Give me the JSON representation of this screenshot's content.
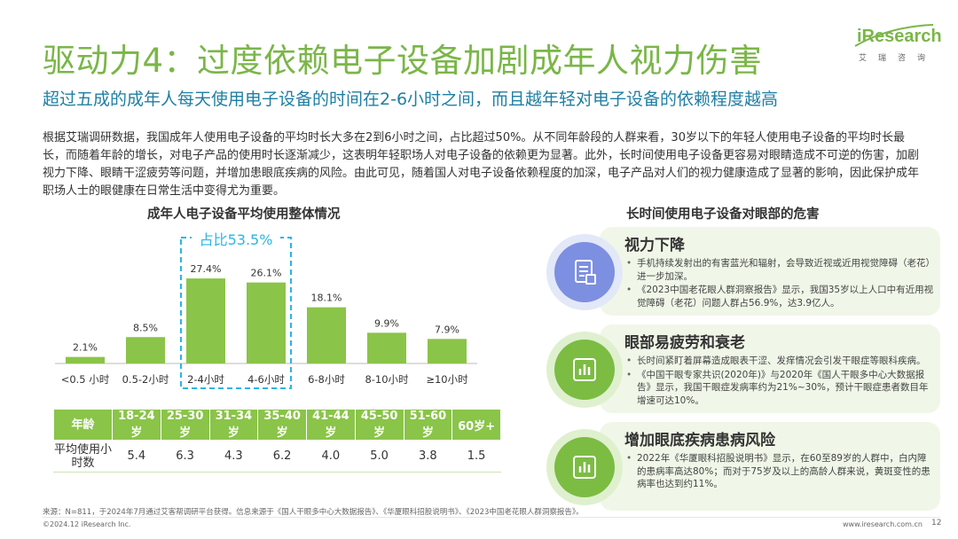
{
  "header": {
    "title": "驱动力4：过度依赖电子设备加剧成年人视力伤害",
    "subtitle": "超过五成的成年人每天使用电子设备的时间在2-6小时之间，而且越年轻对电子设备的依赖程度越高",
    "logo_text": "iResearch",
    "logo_sub": "艾瑞咨询"
  },
  "intro": "根据艾瑞调研数据，我国成年人使用电子设备的平均时长大多在2到6小时之间，占比超过50%。从不同年龄段的人群来看，30岁以下的年轻人使用电子设备的平均时长最长，而随着年龄的增长，对电子产品的使用时长逐渐减少，这表明年轻职场人对电子设备的依赖更为显著。此外，长时间使用电子设备更容易对眼睛造成不可逆的伤害，加剧视力下降、眼睛干涩疲劳等问题，并增加患眼底疾病的风险。由此可见，随着国人对电子设备依赖程度的加深，电子产品对人们的视力健康造成了显著的影响，因此保护成年职场人士的眼健康在日常生活中变得尤为重要。",
  "left_chart_title": "成年人电子设备平均使用整体情况",
  "right_chart_title": "长时间使用电子设备对眼部的危害",
  "chart_data": {
    "type": "bar",
    "categories": [
      "<0.5 小时",
      "0.5-2小时",
      "2-4小时",
      "4-6小时",
      "6-8小时",
      "8-10小时",
      "≥10小时"
    ],
    "values": [
      2.1,
      8.5,
      27.4,
      26.1,
      18.1,
      9.9,
      7.9
    ],
    "value_labels": [
      "2.1%",
      "8.5%",
      "27.4%",
      "26.1%",
      "18.1%",
      "9.9%",
      "7.9%"
    ],
    "highlight": [
      2,
      3
    ],
    "highlight_label": "占比53.5%",
    "ylim": [
      0,
      30
    ],
    "color": "#8ac449",
    "highlight_border_color": "#29b6e6"
  },
  "age_table": {
    "row1_label": "年龄",
    "ages": [
      "18-24岁",
      "25-30岁",
      "31-34岁",
      "35-40岁",
      "41-44岁",
      "45-50岁",
      "51-60岁",
      "60岁+"
    ],
    "row2_label": "平均使用小时数",
    "hours": [
      "5.4",
      "6.3",
      "4.3",
      "6.2",
      "4.0",
      "5.0",
      "3.8",
      "1.5"
    ]
  },
  "cards": [
    {
      "icon": "document-icon",
      "title": "视力下降",
      "items": [
        "手机持续发射出的有害蓝光和辐射，会导致近视或近用视觉障碍（老花）进一步加深。",
        "《2023中国老花眼人群洞察报告》显示，我国35岁以上人口中有近用视觉障碍（老花）问题人群占56.9%，达3.9亿人。"
      ]
    },
    {
      "icon": "bar-chart-icon",
      "title": "眼部易疲劳和衰老",
      "items": [
        "长时间紧盯着屏幕造成眼表干涩、发痒情况会引发干眼症等眼科疾病。",
        "《中国干眼专家共识(2020年)》与2020年《国人干眼多中心大数据报告》显示，我国干眼症发病率约为21%~30%，预计干眼症患者数目年增速可达10%。"
      ]
    },
    {
      "icon": "bar-chart-icon",
      "title": "增加眼底疾病患病风险",
      "items": [
        "2022年《华厦眼科招股说明书》显示，在60至89岁的人群中，白内障的患病率高达80%；而对于75岁及以上的高龄人群来说，黄斑变性的患病率也达到约11%。"
      ]
    }
  ],
  "footer": {
    "source": "来源：N=811，于2024年7月通过艾客帮调研平台获得。信息来源于《国人干眼多中心大数据报告》、《华厦眼科招股说明书》、《2023中国老花眼人群洞察报告》。",
    "copyright": "©2024.12 iResearch Inc.",
    "url": "www.iresearch.com.cn",
    "page": "12"
  }
}
